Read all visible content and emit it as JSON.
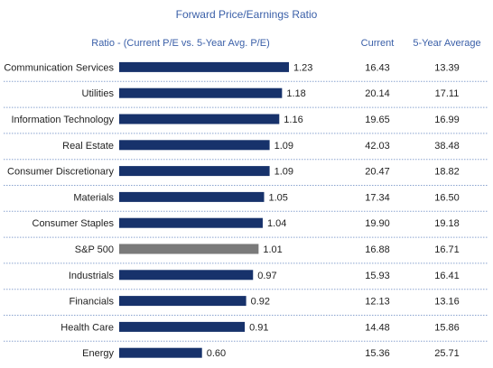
{
  "chart_data": {
    "type": "bar",
    "orientation": "horizontal",
    "title": "Forward Price/Earnings Ratio",
    "bar_header": "Ratio - (Current P/E vs. 5-Year Avg. P/E)",
    "table_headers": [
      "Current",
      "5-Year Average"
    ],
    "categories": [
      "Communication Services",
      "Utilities",
      "Information Technology",
      "Real Estate",
      "Consumer Discretionary",
      "Materials",
      "Consumer Staples",
      "S&P 500",
      "Industrials",
      "Financials",
      "Health Care",
      "Energy"
    ],
    "values": [
      "1.23",
      "1.18",
      "1.16",
      "1.09",
      "1.09",
      "1.05",
      "1.04",
      "1.01",
      "0.97",
      "0.92",
      "0.91",
      "0.60"
    ],
    "current_pe": [
      "16.43",
      "20.14",
      "19.65",
      "42.03",
      "20.47",
      "17.34",
      "19.90",
      "16.88",
      "15.93",
      "12.13",
      "14.48",
      "15.36"
    ],
    "five_year_avg_pe": [
      "13.39",
      "17.11",
      "16.99",
      "38.48",
      "18.82",
      "16.50",
      "19.18",
      "16.71",
      "16.41",
      "13.16",
      "15.86",
      "25.71"
    ],
    "bar_color": "#17326b",
    "highlight_category": "S&P 500",
    "highlight_color": "#7a7a7a",
    "xlim": [
      0,
      1.3
    ],
    "grid": false,
    "legend": "none"
  }
}
